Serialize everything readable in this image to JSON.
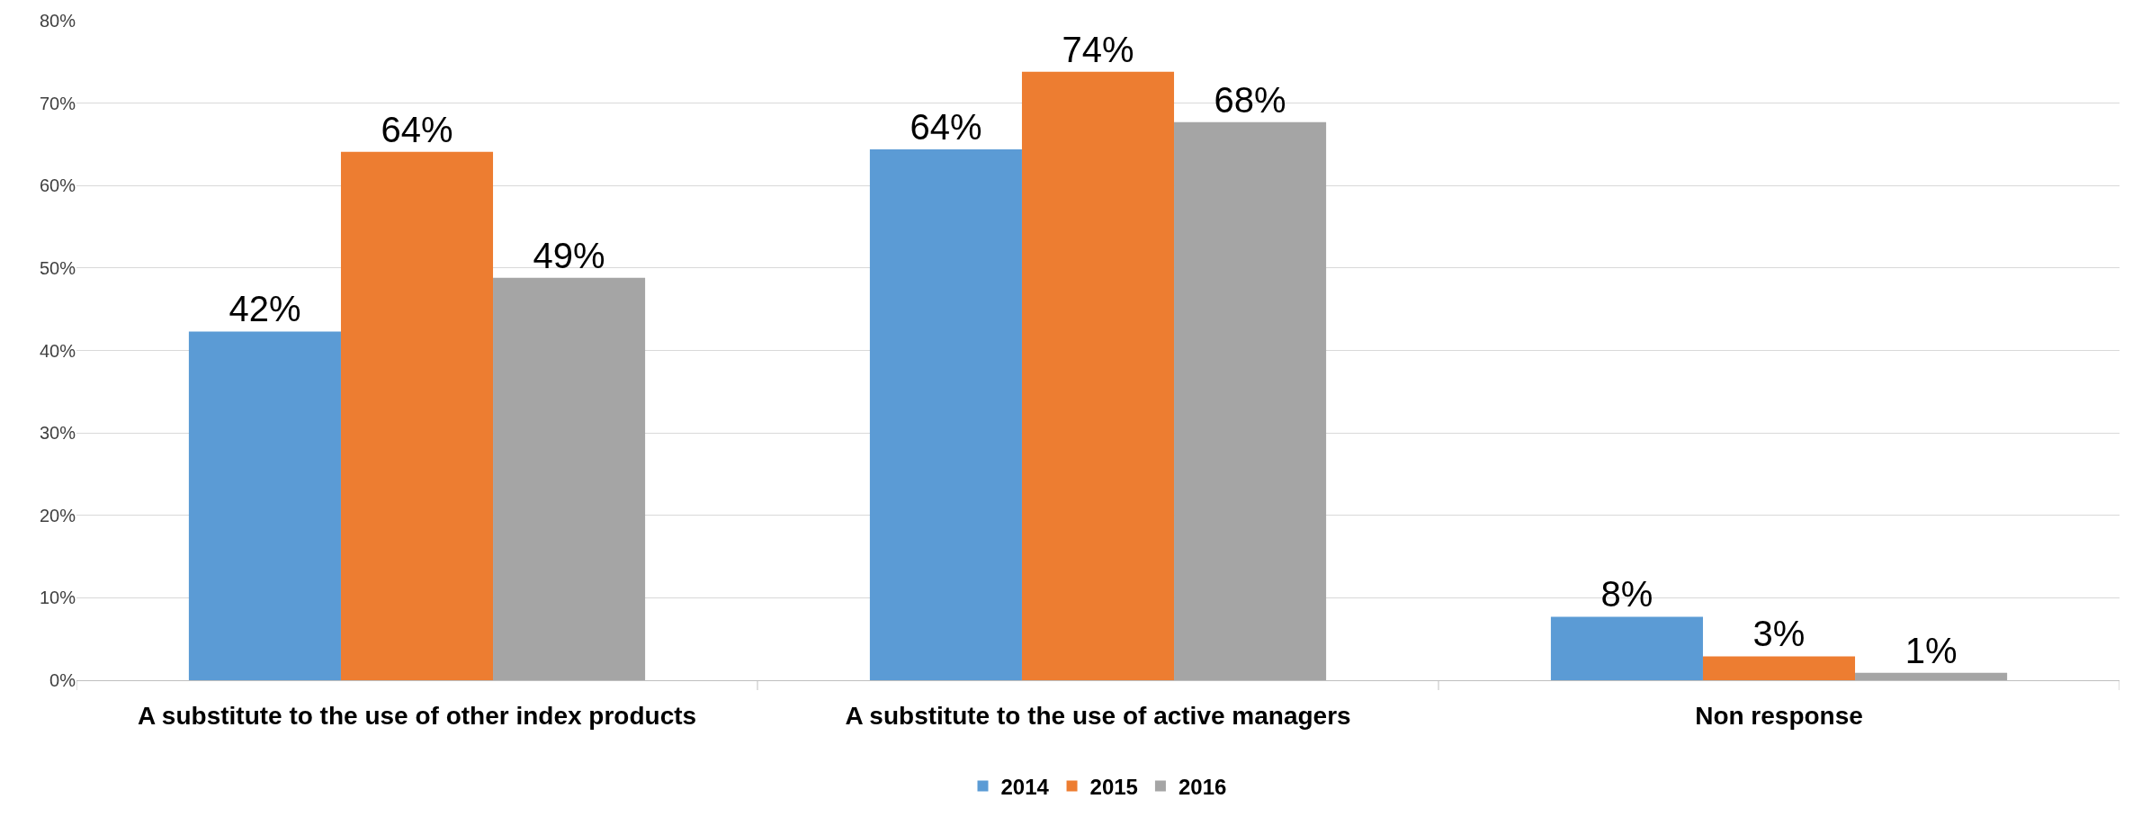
{
  "chart_data": {
    "type": "bar",
    "categories": [
      "A substitute to the use of other index products",
      "A substitute to the use of active managers",
      "Non response"
    ],
    "series": [
      {
        "name": "2014",
        "color": "#5b9bd5",
        "values": [
          42.3,
          64.4,
          7.7
        ],
        "value_labels": [
          "42%",
          "64%",
          "8%"
        ]
      },
      {
        "name": "2015",
        "color": "#ed7d31",
        "values": [
          64.1,
          73.8,
          2.9
        ],
        "value_labels": [
          "64%",
          "74%",
          "3%"
        ]
      },
      {
        "name": "2016",
        "color": "#a5a5a5",
        "values": [
          48.8,
          67.7,
          0.9
        ],
        "value_labels": [
          "49%",
          "68%",
          "1%"
        ]
      }
    ],
    "ylim": [
      0,
      80
    ],
    "yticks": [
      {
        "value": 0,
        "label": "0%"
      },
      {
        "value": 10,
        "label": "10%"
      },
      {
        "value": 20,
        "label": "20%"
      },
      {
        "value": 30,
        "label": "30%"
      },
      {
        "value": 40,
        "label": "40%"
      },
      {
        "value": 50,
        "label": "50%"
      },
      {
        "value": 60,
        "label": "60%"
      },
      {
        "value": 70,
        "label": "70%"
      },
      {
        "value": 80,
        "label": "80%"
      }
    ],
    "grid": "y",
    "legend": "bottom"
  }
}
